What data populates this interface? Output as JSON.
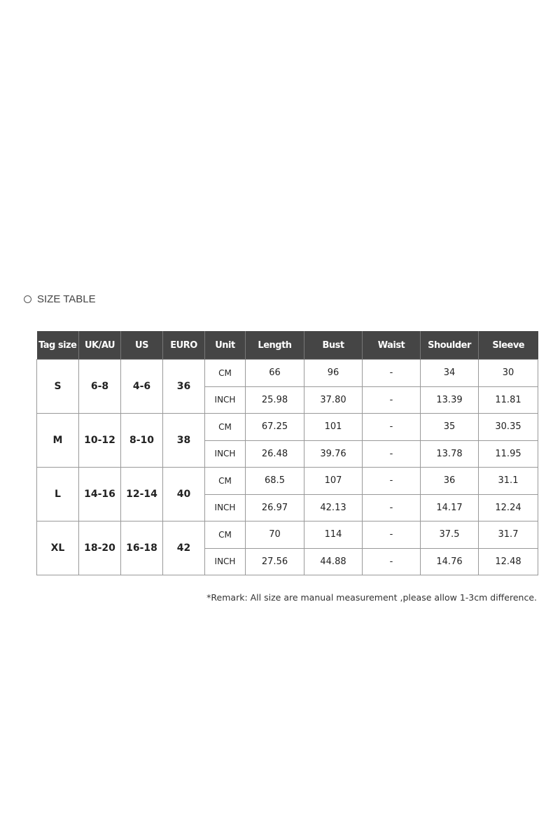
{
  "title": "SIZE TABLE",
  "table": {
    "headers": [
      "Tag size",
      "UK/AU",
      "US",
      "EURO",
      "Unit",
      "Length",
      "Bust",
      "Waist",
      "Shoulder",
      "Sleeve"
    ],
    "rows": [
      {
        "tag": "S",
        "uk": "6-8",
        "us": "4-6",
        "euro": "36",
        "cm": [
          "66",
          "96",
          "-",
          "34",
          "30"
        ],
        "inch": [
          "25.98",
          "37.80",
          "-",
          "13.39",
          "11.81"
        ]
      },
      {
        "tag": "M",
        "uk": "10-12",
        "us": "8-10",
        "euro": "38",
        "cm": [
          "67.25",
          "101",
          "-",
          "35",
          "30.35"
        ],
        "inch": [
          "26.48",
          "39.76",
          "-",
          "13.78",
          "11.95"
        ]
      },
      {
        "tag": "L",
        "uk": "14-16",
        "us": "12-14",
        "euro": "40",
        "cm": [
          "68.5",
          "107",
          "-",
          "36",
          "31.1"
        ],
        "inch": [
          "26.97",
          "42.13",
          "-",
          "14.17",
          "12.24"
        ]
      },
      {
        "tag": "XL",
        "uk": "18-20",
        "us": "16-18",
        "euro": "42",
        "cm": [
          "70",
          "114",
          "-",
          "37.5",
          "31.7"
        ],
        "inch": [
          "27.56",
          "44.88",
          "-",
          "14.76",
          "12.48"
        ]
      }
    ],
    "units": {
      "cm": "CM",
      "inch": "INCH"
    }
  },
  "remark": "*Remark: All size are manual measurement ,please allow 1-3cm difference.",
  "colors": {
    "header_bg": "#454545",
    "header_text": "#ffffff",
    "border": "#999999"
  }
}
